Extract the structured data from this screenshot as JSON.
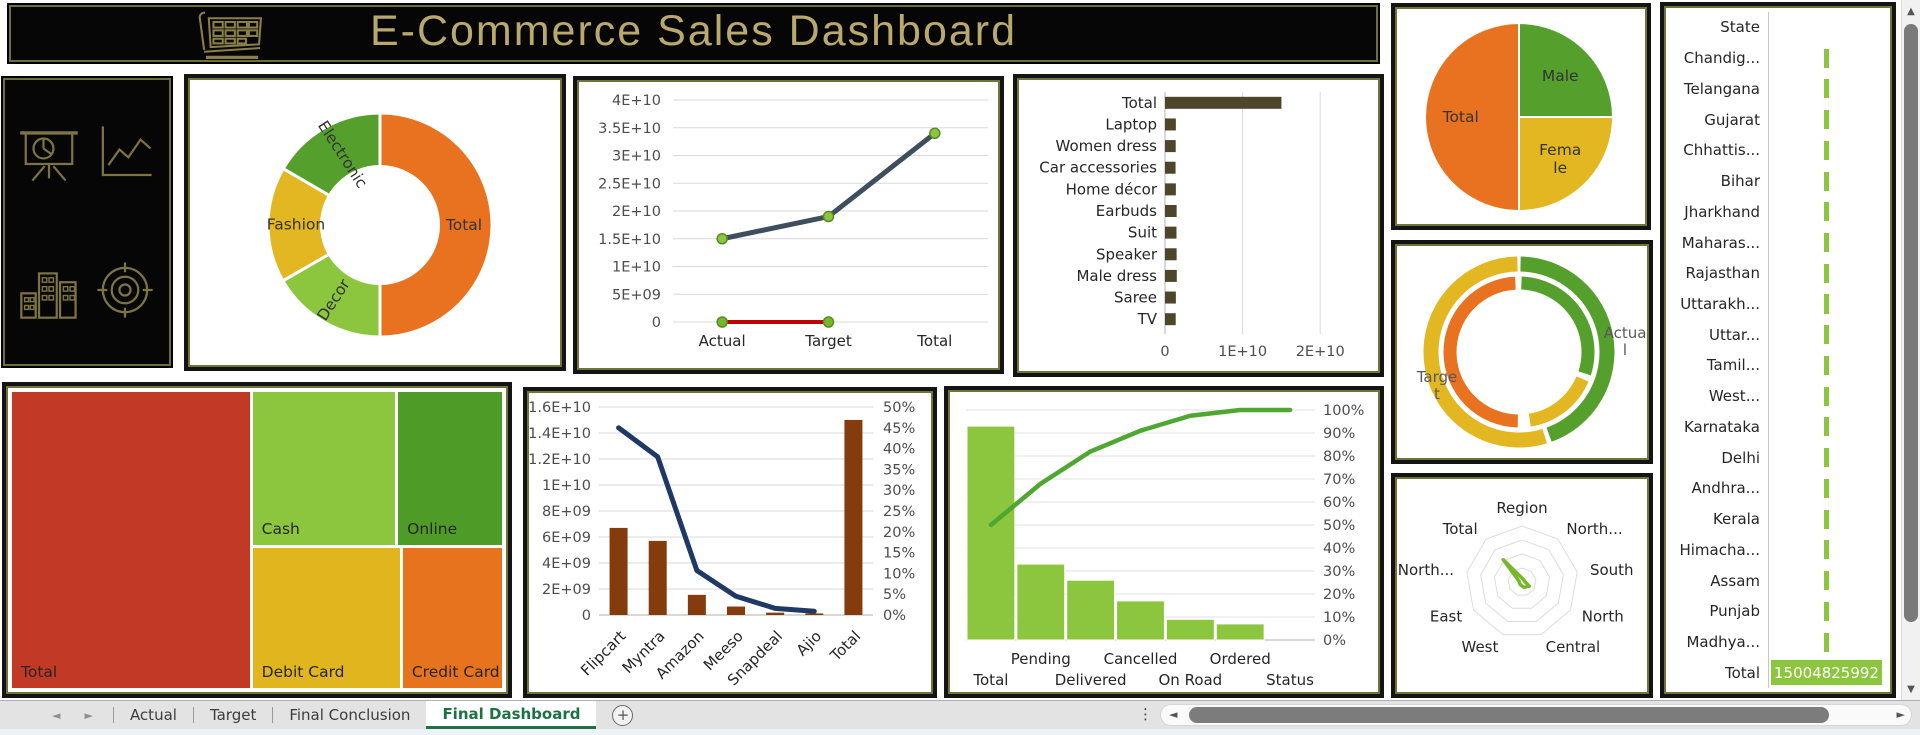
{
  "header": {
    "title": "E-Commerce Sales Dashboard"
  },
  "theme": {
    "gold": "#b9a96e",
    "orange": "#e8721f",
    "green": "#55a02c",
    "light_green": "#8cc63e",
    "yellow": "#e2b722",
    "red": "#c23a26",
    "slate": "#3f4e5d",
    "dark_red": "#c00000",
    "brown": "#843c0c",
    "navy": "#1f3864",
    "pareto_green": "#4ea72e",
    "bar_olive": "#4e462b",
    "tab_green": "#1e7145",
    "grid": "#d9d9d9"
  },
  "icons": {
    "prev": "◄",
    "next": "►",
    "up": "▲",
    "down": "▼",
    "left": "◄",
    "right": "►",
    "dots": "⋮",
    "sidebar": [
      "presentation-pie-chart-icon",
      "line-chart-icon",
      "city-buildings-icon",
      "target-icon"
    ],
    "header": "shopping-cart-icon"
  },
  "chart_data": [
    {
      "id": "category-donut",
      "type": "doughnut",
      "title": "",
      "slices": [
        {
          "label": "Total",
          "value": 50,
          "color": "#e8721f",
          "rot": 0
        },
        {
          "label": "Decor",
          "value": 16.7,
          "color": "#8cc63e",
          "rot": -57
        },
        {
          "label": "Fashion",
          "value": 16.7,
          "color": "#e2b722",
          "rot": 0
        },
        {
          "label": "Electronic",
          "value": 16.6,
          "color": "#55a02c",
          "rot": 57
        }
      ]
    },
    {
      "id": "trend-line",
      "type": "line",
      "categories": [
        "Actual",
        "Target",
        "Total"
      ],
      "y_ticks": [
        "4E+10",
        "3.5E+10",
        "3E+10",
        "2.5E+10",
        "2E+10",
        "1.5E+10",
        "1E+10",
        "5E+09",
        "0"
      ],
      "ymax": 40000000000,
      "series": [
        {
          "color": "#3f4e5d",
          "marker": "#8cc63e",
          "values": [
            15000000000,
            19000000000,
            34000000000
          ]
        },
        {
          "color": "#c00000",
          "marker": "#76b82a",
          "values": [
            0,
            0,
            null
          ]
        }
      ]
    },
    {
      "id": "product-bars",
      "type": "bar",
      "orientation": "horizontal",
      "categories": [
        "Total",
        "Laptop",
        "Women dress",
        "Car accessories",
        "Home décor",
        "Earbuds",
        "Suit",
        "Speaker",
        "Male dress",
        "Saree",
        "TV"
      ],
      "values": [
        15004825992,
        1400000000,
        1380000000,
        1360000000,
        1400000000,
        1500000000,
        1480000000,
        1500000000,
        1520000000,
        1400000000,
        1380000000
      ],
      "x_ticks": [
        "0",
        "1E+10",
        "2E+10"
      ],
      "x_tick_values": [
        0,
        10000000000,
        20000000000
      ],
      "xmax": 25000000000,
      "color": "#4e462b"
    },
    {
      "id": "gender-pie",
      "type": "pie",
      "slices": [
        {
          "label": "Male",
          "value": 25,
          "color": "#55a02c"
        },
        {
          "label": "Female",
          "value": 25,
          "color": "#e2b722",
          "wrap": [
            "Fema",
            "le"
          ]
        },
        {
          "label": "Total",
          "value": 50,
          "color": "#e8721f"
        }
      ]
    },
    {
      "id": "target-gauge",
      "type": "doughnut-gauge",
      "outer_ring": [
        {
          "color": "#55a02c",
          "start": 1,
          "end": 160
        },
        {
          "color": "#e2b722",
          "start": 163,
          "end": 359
        }
      ],
      "inner_ring": [
        {
          "color": "#55a02c",
          "start": 2,
          "end": 108
        },
        {
          "color": "#e2b722",
          "start": 113,
          "end": 171
        },
        {
          "color": "#e8721f",
          "start": 181,
          "end": 357
        }
      ],
      "labels": [
        {
          "text": "Actual",
          "wrap": [
            "Actua",
            "l"
          ],
          "x": 228,
          "y": 92
        },
        {
          "text": "Target",
          "wrap": [
            "Targe",
            "t"
          ],
          "x": 40,
          "y": 136
        }
      ]
    },
    {
      "id": "region-radar",
      "type": "radar",
      "rings": 4,
      "color": "#76b82a",
      "axes": [
        "Region",
        "North...",
        "South",
        "North",
        "Central",
        "West",
        "East",
        "North...",
        "Total"
      ],
      "values": [
        0.07,
        0.05,
        0.05,
        0.15,
        0.1,
        0.06,
        0.05,
        0.05,
        0.52
      ]
    },
    {
      "id": "state-funnel",
      "type": "funnel",
      "color": "#8cc63e",
      "header": "State",
      "rows": [
        "Chandig...",
        "Telangana",
        "Gujarat",
        "Chhattis...",
        "Bihar",
        "Jharkhand",
        "Maharas...",
        "Rajasthan",
        "Uttarakh...",
        "Uttar...",
        "Tamil...",
        "West...",
        "Karnataka",
        "Delhi",
        "Andhra...",
        "Kerala",
        "Himacha...",
        "Assam",
        "Punjab",
        "Madhya..."
      ],
      "row_value": 750241299,
      "total": {
        "label": "Total",
        "value": 15004825992,
        "display": "15004825992"
      }
    },
    {
      "id": "payment-treemap",
      "type": "treemap",
      "cells": [
        {
          "label": "Total",
          "color": "#c23a26",
          "share": 48.5
        },
        {
          "label": "Cash",
          "color": "#8cc63e",
          "share": 15.2
        },
        {
          "label": "Online",
          "color": "#4f9b28",
          "share": 11.4
        },
        {
          "label": "Debit Card",
          "color": "#e0b51e",
          "share": 14.7
        },
        {
          "label": "Credit Card",
          "color": "#e8731e",
          "share": 10.2
        }
      ]
    },
    {
      "id": "platform-pareto",
      "type": "pareto",
      "categories": [
        "Flipcart",
        "Myntra",
        "Amazon",
        "Meeso",
        "Snapdeal",
        "Ajio",
        "Total"
      ],
      "bar_values": [
        6700000000,
        5700000000,
        1550000000,
        650000000,
        180000000,
        120000000,
        15004825992
      ],
      "bar_color": "#843c0c",
      "ymax_left": 16000000000,
      "left_ticks": [
        "1.6E+10",
        "1.4E+10",
        "1.2E+10",
        "1E+10",
        "8E+09",
        "6E+09",
        "4E+09",
        "2E+09",
        "0"
      ],
      "line_values_pct": [
        45,
        38,
        10.7,
        4.5,
        1.6,
        0.9
      ],
      "line_color": "#1f3864",
      "ymax_right": 50,
      "right_ticks": [
        "50%",
        "45%",
        "40%",
        "35%",
        "30%",
        "25%",
        "20%",
        "15%",
        "10%",
        "5%",
        "0%"
      ]
    },
    {
      "id": "status-pareto",
      "type": "pareto",
      "categories": [
        "Total",
        "Pending",
        "Delivered",
        "Cancelled",
        "On Road",
        "Ordered",
        "Status"
      ],
      "bar_values_pct": [
        93,
        33,
        26,
        17,
        9,
        7,
        null
      ],
      "bar_color": "#8cc63e",
      "line_values_pct": [
        50,
        68,
        82,
        91,
        97.5,
        100,
        100
      ],
      "line_color": "#4ea72e",
      "ymax_right": 100,
      "right_ticks": [
        "100%",
        "90%",
        "80%",
        "70%",
        "60%",
        "50%",
        "40%",
        "30%",
        "20%",
        "10%",
        "0%"
      ],
      "label_row_upper": [
        1,
        3,
        5
      ],
      "label_row_lower": [
        0,
        2,
        4,
        6
      ]
    }
  ],
  "sheet_tabs": {
    "tabs": [
      {
        "label": "Actual",
        "active": false
      },
      {
        "label": "Target",
        "active": false
      },
      {
        "label": "Final Conclusion",
        "active": false
      },
      {
        "label": "Final Dashboard",
        "active": true
      }
    ],
    "add_label": "+"
  }
}
